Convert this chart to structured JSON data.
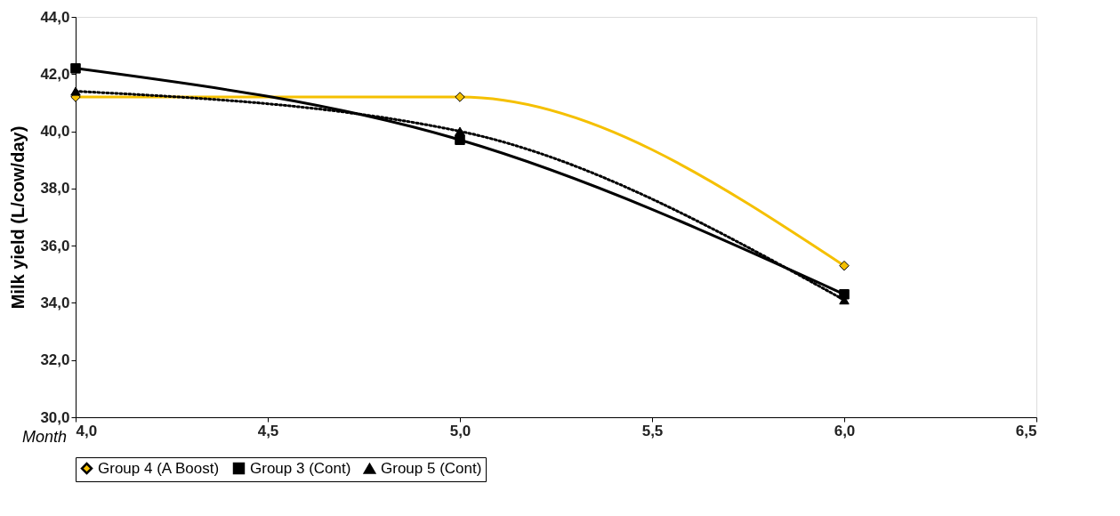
{
  "chart_data": {
    "type": "line",
    "xlabel": "Month",
    "ylabel": "Milk yield (L/cow/day)",
    "x": [
      4.0,
      5.0,
      6.0
    ],
    "series": [
      {
        "name": "Group 4 (A Boost)",
        "color": "#f5c000",
        "values": [
          41.2,
          41.2,
          35.3
        ],
        "marker": "diamond",
        "line_style": "solid"
      },
      {
        "name": "Group 3 (Cont)",
        "color": "#000000",
        "values": [
          42.2,
          39.7,
          34.3
        ],
        "marker": "square",
        "line_style": "solid"
      },
      {
        "name": "Group 5 (Cont)",
        "color": "#000000",
        "values": [
          41.4,
          40.0,
          34.1
        ],
        "marker": "triangle",
        "line_style": "dotted"
      }
    ],
    "xlim": [
      4.0,
      6.5
    ],
    "xticks": [
      {
        "value": 4.0,
        "label": "4,0"
      },
      {
        "value": 4.5,
        "label": "4,5"
      },
      {
        "value": 5.0,
        "label": "5,0"
      },
      {
        "value": 5.5,
        "label": "5,5"
      },
      {
        "value": 6.0,
        "label": "6,0"
      },
      {
        "value": 6.5,
        "label": "6,5"
      }
    ],
    "ylim": [
      30.0,
      44.0
    ],
    "yticks": [
      {
        "value": 30.0,
        "label": "30,0"
      },
      {
        "value": 32.0,
        "label": "32,0"
      },
      {
        "value": 34.0,
        "label": "34,0"
      },
      {
        "value": 36.0,
        "label": "36,0"
      },
      {
        "value": 38.0,
        "label": "38,0"
      },
      {
        "value": 40.0,
        "label": "40,0"
      },
      {
        "value": 42.0,
        "label": "42,0"
      },
      {
        "value": 44.0,
        "label": "44,0"
      }
    ],
    "grid": false,
    "legend": "bottom"
  }
}
